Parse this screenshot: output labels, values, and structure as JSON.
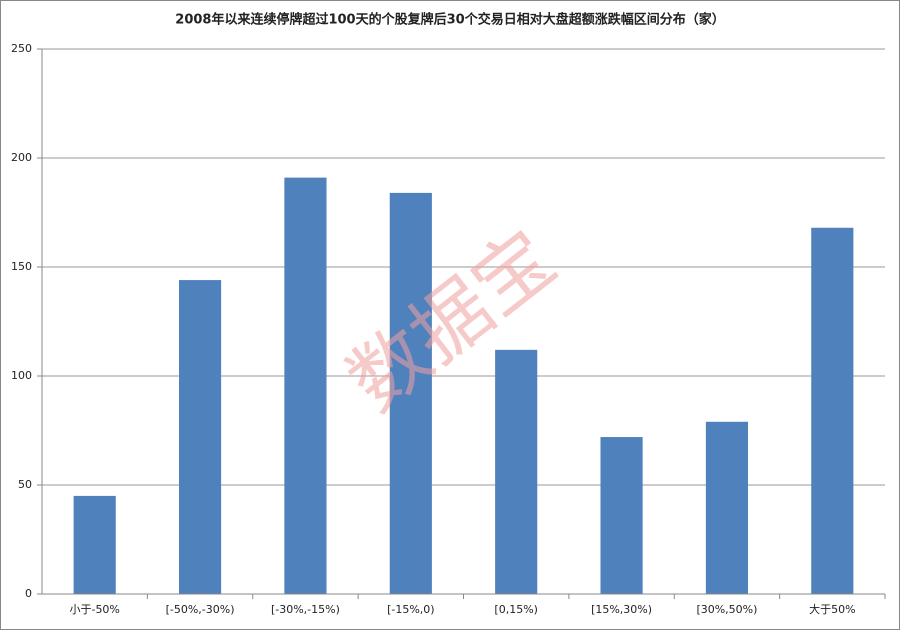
{
  "chart_data": {
    "type": "bar",
    "title": "2008年以来连续停牌超过100天的个股复牌后30个交易日相对大盘超额涨跌幅区间分布（家）",
    "watermark": "数据宝",
    "categories": [
      "小于-50%",
      "[-50%,-30%)",
      "[-30%,-15%)",
      "[-15%,0)",
      "[0,15%)",
      "[15%,30%)",
      "[30%,50%)",
      "大于50%"
    ],
    "values": [
      45,
      144,
      191,
      184,
      112,
      72,
      79,
      168
    ],
    "color": "#4f81bd",
    "ylim": [
      0,
      250
    ],
    "yticks": [
      0,
      50,
      100,
      150,
      200,
      250
    ],
    "grid": true
  }
}
